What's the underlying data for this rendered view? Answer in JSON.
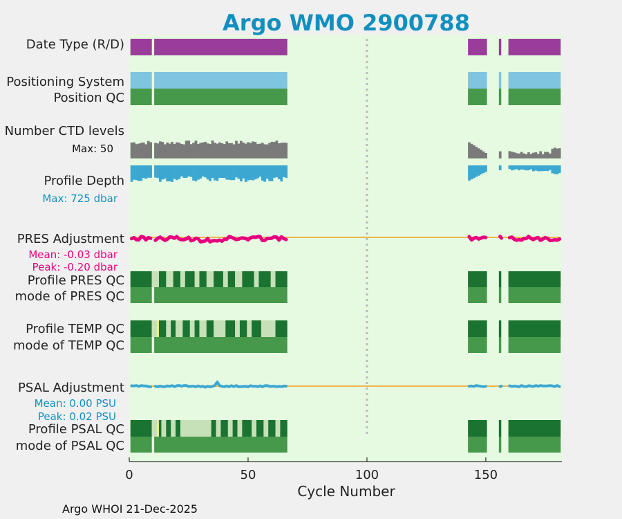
{
  "chart_data": {
    "type": "qc-timeline",
    "title": "Argo WMO 2900788",
    "xlabel": "Cycle Number",
    "xlim": [
      0,
      182
    ],
    "xticks": [
      0,
      50,
      100,
      150
    ],
    "reference_line_x": 100,
    "footer": "Argo WHOI 21-Dec-2025",
    "colors": {
      "background": "#e6f9e1",
      "date_type": "#9a3d9a",
      "positioning": "#7fc5e0",
      "qc_good": "#1a7330",
      "qc_mode": "#46994a",
      "qc_probably_good": "#c6e0b8",
      "qc_yellow": "#ffff33",
      "ctd": "#7a7a7a",
      "depth": "#3ca8d1",
      "pres_adj": "#e6007e",
      "psal_adj": "#3ca8d1",
      "zero_line": "#f0b64c",
      "title": "#138fbf"
    },
    "cycle_segments": [
      [
        1,
        9
      ],
      [
        11,
        66
      ],
      [
        143,
        150
      ],
      [
        156,
        156
      ],
      [
        160,
        181
      ]
    ],
    "rows": {
      "date_type": "Date Type (R/D)",
      "positioning": "Positioning System",
      "position_qc": "Position QC",
      "ctd": "Number CTD levels",
      "depth": "Profile Depth",
      "pres_adj": "PRES Adjustment",
      "pres_qc": "Profile PRES QC",
      "pres_mode": "mode of PRES QC",
      "temp_qc": "Profile TEMP QC",
      "temp_mode": "mode of TEMP QC",
      "psal_adj": "PSAL Adjustment",
      "psal_qc": "Profile PSAL QC",
      "psal_mode": "mode of PSAL QC"
    },
    "annotations": {
      "ctd_max": "Max: 50",
      "depth_max": "Max:  725 dbar",
      "pres_mean": "Mean: -0.03 dbar",
      "pres_peak": "Peak: -0.20 dbar",
      "psal_mean": "Mean: 0.00 PSU",
      "psal_peak": "Peak: 0.02 PSU"
    },
    "pres_light_segments": [
      [
        10,
        12
      ],
      [
        16,
        18
      ],
      [
        22,
        23
      ],
      [
        28,
        29
      ],
      [
        33,
        35
      ],
      [
        40,
        41
      ],
      [
        45,
        47
      ],
      [
        53,
        54
      ],
      [
        60,
        61
      ]
    ],
    "temp_light_segments": [
      [
        10,
        12
      ],
      [
        16,
        17
      ],
      [
        20,
        22
      ],
      [
        26,
        27
      ],
      [
        30,
        32
      ],
      [
        36,
        40
      ],
      [
        45,
        46
      ],
      [
        50,
        51
      ],
      [
        56,
        61
      ]
    ],
    "temp_yellow_cycles": [
      12
    ],
    "psal_light_segments": [
      [
        10,
        12
      ],
      [
        14,
        15
      ],
      [
        18,
        19
      ],
      [
        22,
        34
      ],
      [
        37,
        38
      ],
      [
        42,
        43
      ],
      [
        46,
        47
      ],
      [
        52,
        53
      ],
      [
        57,
        58
      ],
      [
        62,
        63
      ]
    ],
    "psal_yellow_cycles": [
      12
    ]
  }
}
